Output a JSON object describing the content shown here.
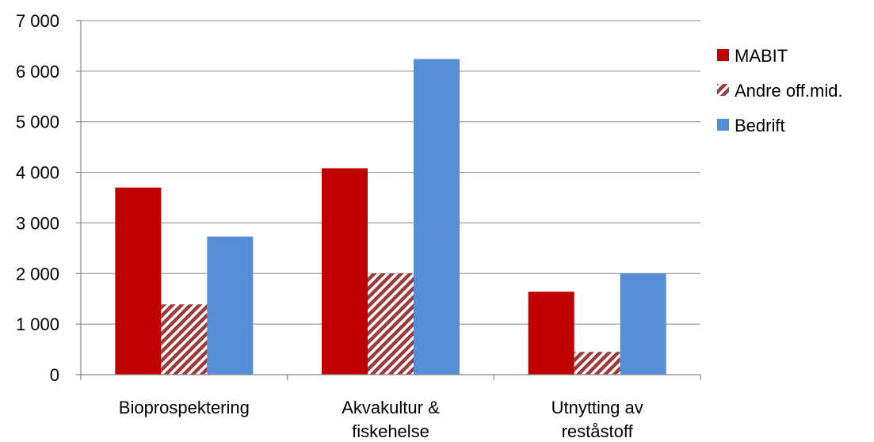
{
  "chart_data": {
    "type": "bar",
    "title": "",
    "xlabel": "",
    "ylabel": "",
    "categories": [
      [
        "Bioprospektering"
      ],
      [
        "Akvakultur &",
        "fiskehelse"
      ],
      [
        "Utnytting av",
        "reståstoff"
      ]
    ],
    "series": [
      {
        "name": "MABIT",
        "values": [
          3700,
          4080,
          1640
        ],
        "color": "#c00000",
        "pattern": "solid"
      },
      {
        "name": "Andre off.mid.",
        "values": [
          1390,
          2000,
          450
        ],
        "color": "#9b3b3b",
        "pattern": "diagonal-hatch"
      },
      {
        "name": "Bedrift",
        "values": [
          2730,
          6240,
          2000
        ],
        "color": "#558ed5",
        "pattern": "solid"
      }
    ],
    "ylim": [
      0,
      7000
    ],
    "yticks": [
      0,
      1000,
      2000,
      3000,
      4000,
      5000,
      6000,
      7000
    ],
    "ytick_labels": [
      "0",
      "1 000",
      "2 000",
      "3 000",
      "4 000",
      "5 000",
      "6 000",
      "7 000"
    ],
    "grid": true,
    "legend_position": "right"
  }
}
